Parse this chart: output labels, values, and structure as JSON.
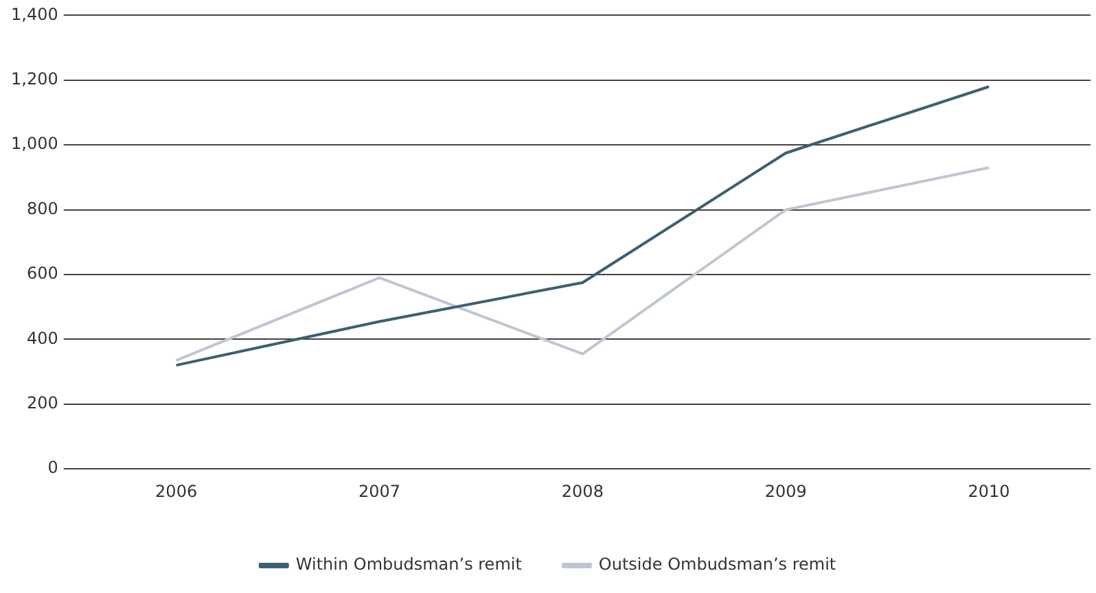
{
  "chart_data": {
    "type": "line",
    "categories": [
      "2006",
      "2007",
      "2008",
      "2009",
      "2010"
    ],
    "series": [
      {
        "name": "Within Ombudsman’s remit",
        "color": "#3d6070",
        "values": [
          320,
          455,
          575,
          975,
          1180
        ]
      },
      {
        "name": "Outside Ombudsman’s remit",
        "color": "#bec6d2",
        "values": [
          335,
          590,
          355,
          800,
          930
        ]
      }
    ],
    "ylim": [
      0,
      1400
    ],
    "yticks": [
      {
        "value": 0,
        "label": "0"
      },
      {
        "value": 200,
        "label": "200"
      },
      {
        "value": 400,
        "label": "400"
      },
      {
        "value": 600,
        "label": "600"
      },
      {
        "value": 800,
        "label": "800"
      },
      {
        "value": 1000,
        "label": "1,000"
      },
      {
        "value": 1200,
        "label": "1,200"
      },
      {
        "value": 1400,
        "label": "1,400"
      }
    ],
    "grid": "y",
    "legend": "bottom",
    "marker": "none",
    "line_style": "solid"
  }
}
